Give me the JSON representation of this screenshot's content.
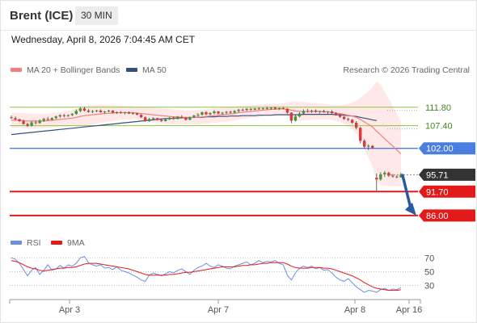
{
  "header": {
    "instrument": "Brent (ICE)",
    "timeframe": "30 MIN"
  },
  "datetime": "Wednesday, April 8, 2026 7:04:45 AM CET",
  "legend": {
    "ma20": "MA 20 + Bollinger Bands",
    "ma50": "MA 50",
    "copyright": "Research © 2026 Trading Central",
    "rsi": "RSI",
    "rsi_ma": "9MA"
  },
  "colors": {
    "candle_up": "#3a9a3a",
    "candle_down": "#d93a3a",
    "ma20": "#f08080",
    "ma50": "#35507f",
    "bollinger_fill": "#fde0e0",
    "resistance": "#8cc63f",
    "pivot": "#4a7fe0",
    "support": "#e31a1a",
    "last_price": "#333333",
    "rsi": "#6b8fe0",
    "rsi_ma": "#e31a1a",
    "forecast_arrow": "#2b5aa0"
  },
  "chart_data": {
    "type": "candlestick",
    "y_range": [
      82.9,
      118.3
    ],
    "levels": [
      {
        "value": 111.8,
        "label": "111.80",
        "kind": "resistance"
      },
      {
        "value": 107.4,
        "label": "107.40",
        "kind": "resistance"
      },
      {
        "value": 102.0,
        "label": "102.00",
        "kind": "pivot"
      },
      {
        "value": 95.71,
        "label": "95.71",
        "kind": "last"
      },
      {
        "value": 91.7,
        "label": "91.70",
        "kind": "support"
      },
      {
        "value": 86.0,
        "label": "86.00",
        "kind": "support"
      }
    ],
    "forecast_arrow": {
      "from": 95.6,
      "to": 86.0
    },
    "x_axis": [
      "Apr 3",
      "Apr 7",
      "Apr 8",
      "Apr 16"
    ],
    "ohlc": [
      [
        109.4,
        109.8,
        109.0,
        109.2
      ],
      [
        109.2,
        109.6,
        108.7,
        108.9
      ],
      [
        108.9,
        109.1,
        108.3,
        108.5
      ],
      [
        108.5,
        108.8,
        107.6,
        107.8
      ],
      [
        107.8,
        108.1,
        107.1,
        107.4
      ],
      [
        107.4,
        108.5,
        107.2,
        108.2
      ],
      [
        108.2,
        108.6,
        107.7,
        108.0
      ],
      [
        108.0,
        108.9,
        107.9,
        108.6
      ],
      [
        108.6,
        109.3,
        108.3,
        109.0
      ],
      [
        109.0,
        109.5,
        108.6,
        108.8
      ],
      [
        108.8,
        109.4,
        108.6,
        109.2
      ],
      [
        109.2,
        109.8,
        109.0,
        109.6
      ],
      [
        109.6,
        110.1,
        109.3,
        109.9
      ],
      [
        109.9,
        110.2,
        109.4,
        109.7
      ],
      [
        109.7,
        110.1,
        109.5,
        109.9
      ],
      [
        109.9,
        110.4,
        109.7,
        110.2
      ],
      [
        110.2,
        111.3,
        110.0,
        110.9
      ],
      [
        110.9,
        111.8,
        110.6,
        111.5
      ],
      [
        111.5,
        111.9,
        110.8,
        111.0
      ],
      [
        111.0,
        111.4,
        110.5,
        110.7
      ],
      [
        110.7,
        111.1,
        110.4,
        110.9
      ],
      [
        110.9,
        111.2,
        110.6,
        111.0
      ],
      [
        111.0,
        111.3,
        110.5,
        110.6
      ],
      [
        110.6,
        110.9,
        110.3,
        110.8
      ],
      [
        110.8,
        111.2,
        110.6,
        111.0
      ],
      [
        111.0,
        111.1,
        110.4,
        110.5
      ],
      [
        110.5,
        110.8,
        110.2,
        110.6
      ],
      [
        110.6,
        110.9,
        110.3,
        110.4
      ],
      [
        110.4,
        110.7,
        110.1,
        110.6
      ],
      [
        110.6,
        110.8,
        110.2,
        110.3
      ],
      [
        110.3,
        110.6,
        110.0,
        110.4
      ],
      [
        110.4,
        110.5,
        109.9,
        110.0
      ],
      [
        110.0,
        110.2,
        109.2,
        109.4
      ],
      [
        109.4,
        109.6,
        108.3,
        108.5
      ],
      [
        108.5,
        109.3,
        108.3,
        109.0
      ],
      [
        109.0,
        109.4,
        108.7,
        109.2
      ],
      [
        109.2,
        109.3,
        108.6,
        108.8
      ],
      [
        108.8,
        109.0,
        108.3,
        108.5
      ],
      [
        108.5,
        109.1,
        108.4,
        108.9
      ],
      [
        108.9,
        109.5,
        108.7,
        109.3
      ],
      [
        109.3,
        109.6,
        108.8,
        109.0
      ],
      [
        109.0,
        109.7,
        108.9,
        109.5
      ],
      [
        109.5,
        109.9,
        109.1,
        109.3
      ],
      [
        109.3,
        109.5,
        108.6,
        108.8
      ],
      [
        108.8,
        109.6,
        108.7,
        109.4
      ],
      [
        109.4,
        110.0,
        109.2,
        109.8
      ],
      [
        109.8,
        110.4,
        109.5,
        110.0
      ],
      [
        110.0,
        110.8,
        109.8,
        110.6
      ],
      [
        110.6,
        110.9,
        109.9,
        110.1
      ],
      [
        110.1,
        110.6,
        109.9,
        110.4
      ],
      [
        110.4,
        111.1,
        110.1,
        110.8
      ],
      [
        110.8,
        110.9,
        110.1,
        110.3
      ],
      [
        110.3,
        110.7,
        110.0,
        110.5
      ],
      [
        110.5,
        110.9,
        110.2,
        110.7
      ],
      [
        110.7,
        111.0,
        110.3,
        110.5
      ],
      [
        110.5,
        111.1,
        110.4,
        110.9
      ],
      [
        110.9,
        111.4,
        110.6,
        111.2
      ],
      [
        111.2,
        111.5,
        110.9,
        111.1
      ],
      [
        111.1,
        111.6,
        110.9,
        111.4
      ],
      [
        111.4,
        111.6,
        111.0,
        111.2
      ],
      [
        111.2,
        111.6,
        111.1,
        111.5
      ],
      [
        111.5,
        111.8,
        111.2,
        111.4
      ],
      [
        111.4,
        111.7,
        111.2,
        111.6
      ],
      [
        111.6,
        111.9,
        111.3,
        111.5
      ],
      [
        111.5,
        111.8,
        111.2,
        111.7
      ],
      [
        111.7,
        111.9,
        111.3,
        111.4
      ],
      [
        111.4,
        111.7,
        111.1,
        111.6
      ],
      [
        111.6,
        111.8,
        111.3,
        111.4
      ],
      [
        111.4,
        111.6,
        110.2,
        110.5
      ],
      [
        110.5,
        110.6,
        108.0,
        108.6
      ],
      [
        108.6,
        110.0,
        108.4,
        109.6
      ],
      [
        109.6,
        110.6,
        109.4,
        110.3
      ],
      [
        110.3,
        111.3,
        110.0,
        110.9
      ],
      [
        110.9,
        111.4,
        110.5,
        110.8
      ],
      [
        110.8,
        111.2,
        110.4,
        111.0
      ],
      [
        111.0,
        111.3,
        110.5,
        110.7
      ],
      [
        110.7,
        111.0,
        110.3,
        110.9
      ],
      [
        110.9,
        111.2,
        110.5,
        110.6
      ],
      [
        110.6,
        110.9,
        110.2,
        110.8
      ],
      [
        110.8,
        111.1,
        110.2,
        110.4
      ],
      [
        110.4,
        110.6,
        109.8,
        110.0
      ],
      [
        110.0,
        110.2,
        109.3,
        109.5
      ],
      [
        109.5,
        109.7,
        108.8,
        109.0
      ],
      [
        109.0,
        109.3,
        108.5,
        108.8
      ],
      [
        108.8,
        109.0,
        107.8,
        108.1
      ],
      [
        108.1,
        108.5,
        106.5,
        106.9
      ],
      [
        106.9,
        107.1,
        103.2,
        103.8
      ],
      [
        103.8,
        104.2,
        101.9,
        102.4
      ],
      [
        102.4,
        103.0,
        101.6,
        102.6
      ],
      [
        102.6,
        102.8,
        101.9,
        102.1
      ],
      [
        95.0,
        96.0,
        91.9,
        94.6
      ],
      [
        94.6,
        96.3,
        94.3,
        95.8
      ],
      [
        95.8,
        96.6,
        95.2,
        96.2
      ],
      [
        96.2,
        96.4,
        95.2,
        95.5
      ],
      [
        95.5,
        95.9,
        95.0,
        95.3
      ],
      [
        95.3,
        95.6,
        94.9,
        95.1
      ],
      [
        95.1,
        96.2,
        95.0,
        95.71
      ]
    ],
    "ma20": [
      108.7,
      108.7,
      108.7,
      108.6,
      108.5,
      108.5,
      108.5,
      108.5,
      108.5,
      108.6,
      108.7,
      108.8,
      108.9,
      109.0,
      109.1,
      109.2,
      109.4,
      109.6,
      109.8,
      109.9,
      110.0,
      110.1,
      110.2,
      110.3,
      110.4,
      110.4,
      110.5,
      110.5,
      110.5,
      110.5,
      110.5,
      110.4,
      110.3,
      110.2,
      110.1,
      110.0,
      109.9,
      109.8,
      109.7,
      109.6,
      109.5,
      109.5,
      109.4,
      109.4,
      109.4,
      109.4,
      109.4,
      109.5,
      109.6,
      109.7,
      109.8,
      109.9,
      110.0,
      110.1,
      110.2,
      110.3,
      110.5,
      110.6,
      110.7,
      110.8,
      110.9,
      111.0,
      111.1,
      111.2,
      111.3,
      111.3,
      111.4,
      111.4,
      111.3,
      111.1,
      110.9,
      110.8,
      110.8,
      110.8,
      110.8,
      110.8,
      110.8,
      110.7,
      110.7,
      110.6,
      110.4,
      110.3,
      110.1,
      109.9,
      109.7,
      109.4,
      108.9,
      108.3,
      107.7,
      107.1,
      106.1,
      105.2,
      104.3,
      103.4,
      102.5,
      101.6,
      100.7
    ],
    "ma50": [
      105.3,
      105.4,
      105.5,
      105.6,
      105.7,
      105.8,
      105.9,
      106.0,
      106.1,
      106.2,
      106.3,
      106.4,
      106.5,
      106.6,
      106.7,
      106.8,
      106.9,
      107.0,
      107.1,
      107.2,
      107.3,
      107.4,
      107.5,
      107.6,
      107.7,
      107.8,
      107.9,
      108.0,
      108.1,
      108.2,
      108.3,
      108.4,
      108.5,
      108.6,
      108.7,
      108.8,
      108.9,
      109.0,
      109.1,
      109.1,
      109.2,
      109.2,
      109.3,
      109.3,
      109.3,
      109.4,
      109.4,
      109.4,
      109.5,
      109.5,
      109.5,
      109.6,
      109.6,
      109.6,
      109.7,
      109.7,
      109.7,
      109.8,
      109.8,
      109.8,
      109.8,
      109.9,
      109.9,
      109.9,
      109.9,
      110.0,
      110.0,
      110.0,
      110.0,
      110.0,
      110.0,
      110.0,
      110.1,
      110.1,
      110.1,
      110.1,
      110.1,
      110.1,
      110.1,
      110.1,
      110.0,
      110.0,
      109.9,
      109.8,
      109.7,
      109.6,
      109.4,
      109.2,
      109.0,
      108.8,
      108.6
    ],
    "bollinger": {
      "upper": [
        110.5,
        110.5,
        110.4,
        110.4,
        110.3,
        110.3,
        110.2,
        110.2,
        110.2,
        110.3,
        110.4,
        110.5,
        110.6,
        110.8,
        110.9,
        111.1,
        111.4,
        111.7,
        112.0,
        112.2,
        112.3,
        112.3,
        112.4,
        112.4,
        112.4,
        112.3,
        112.3,
        112.2,
        112.2,
        112.1,
        112.0,
        111.9,
        111.9,
        111.9,
        111.8,
        111.8,
        111.7,
        111.6,
        111.5,
        111.4,
        111.3,
        111.2,
        111.1,
        111.0,
        111.0,
        111.0,
        111.1,
        111.2,
        111.3,
        111.4,
        111.5,
        111.6,
        111.7,
        111.8,
        111.9,
        112.0,
        112.1,
        112.2,
        112.3,
        112.3,
        112.4,
        112.5,
        112.5,
        112.6,
        112.6,
        112.6,
        112.7,
        112.7,
        112.9,
        113.1,
        113.2,
        113.1,
        113.0,
        112.9,
        112.8,
        112.8,
        112.7,
        112.6,
        112.5,
        112.4,
        112.3,
        112.3,
        112.4,
        112.6,
        112.9,
        113.3,
        114.0,
        114.8,
        115.6,
        116.5,
        118.0,
        117.2,
        115.5,
        113.8,
        112.0,
        110.2,
        108.4
      ],
      "lower": [
        106.9,
        106.9,
        107.0,
        106.8,
        106.7,
        106.7,
        106.8,
        106.8,
        106.8,
        106.9,
        107.0,
        107.1,
        107.2,
        107.2,
        107.3,
        107.3,
        107.4,
        107.5,
        107.6,
        107.6,
        107.7,
        107.9,
        108.0,
        108.2,
        108.4,
        108.5,
        108.7,
        108.8,
        108.8,
        108.9,
        109.0,
        108.9,
        108.7,
        108.5,
        108.4,
        108.2,
        108.1,
        108.0,
        107.9,
        107.8,
        107.7,
        107.8,
        107.7,
        107.8,
        107.8,
        107.8,
        107.7,
        107.8,
        107.9,
        108.0,
        108.1,
        108.2,
        108.3,
        108.4,
        108.5,
        108.6,
        108.9,
        109.0,
        109.1,
        109.3,
        109.4,
        109.5,
        109.7,
        109.8,
        110.0,
        110.0,
        110.1,
        110.1,
        109.7,
        109.1,
        108.6,
        108.5,
        108.6,
        108.7,
        108.8,
        108.8,
        108.9,
        108.8,
        108.9,
        108.8,
        108.5,
        108.3,
        107.8,
        107.2,
        106.5,
        105.5,
        103.8,
        101.8,
        99.8,
        97.7,
        94.2,
        93.2,
        93.1,
        93.0,
        93.0,
        93.0,
        93.0
      ]
    },
    "rsi": {
      "axis_ticks": [
        70,
        50,
        30
      ],
      "y_range": [
        12,
        82
      ],
      "rsi": [
        70,
        68,
        62,
        53,
        44,
        52,
        56,
        46,
        52,
        60,
        52,
        54,
        59,
        55,
        60,
        58,
        62,
        70,
        72,
        63,
        60,
        58,
        60,
        55,
        56,
        53,
        57,
        52,
        50,
        48,
        45,
        42,
        38,
        36,
        45,
        48,
        46,
        44,
        47,
        50,
        48,
        52,
        54,
        50,
        46,
        52,
        56,
        58,
        62,
        58,
        56,
        60,
        58,
        55,
        54,
        58,
        60,
        62,
        64,
        60,
        62,
        66,
        63,
        65,
        64,
        66,
        62,
        60,
        45,
        38,
        48,
        55,
        58,
        56,
        58,
        54,
        56,
        52,
        53,
        48,
        42,
        38,
        36,
        40,
        34,
        28,
        24,
        20,
        23,
        22,
        20,
        24,
        26,
        23,
        25,
        24,
        27
      ],
      "ma9": [
        66,
        65,
        63,
        60,
        57,
        55,
        54,
        52,
        51,
        52,
        53,
        54,
        55,
        55,
        56,
        56,
        57,
        59,
        61,
        62,
        62,
        62,
        61,
        60,
        59,
        58,
        57,
        56,
        55,
        54,
        52,
        50,
        48,
        46,
        45,
        45,
        45,
        45,
        45,
        46,
        46,
        47,
        48,
        49,
        49,
        50,
        51,
        52,
        53,
        54,
        55,
        56,
        57,
        57,
        57,
        57,
        58,
        59,
        59,
        60,
        60,
        61,
        62,
        62,
        63,
        63,
        63,
        63,
        61,
        58,
        56,
        55,
        55,
        55,
        56,
        56,
        56,
        55,
        55,
        54,
        52,
        50,
        48,
        46,
        44,
        41,
        38,
        34,
        31,
        28,
        26,
        25,
        24,
        23,
        23,
        23,
        24
      ]
    }
  }
}
